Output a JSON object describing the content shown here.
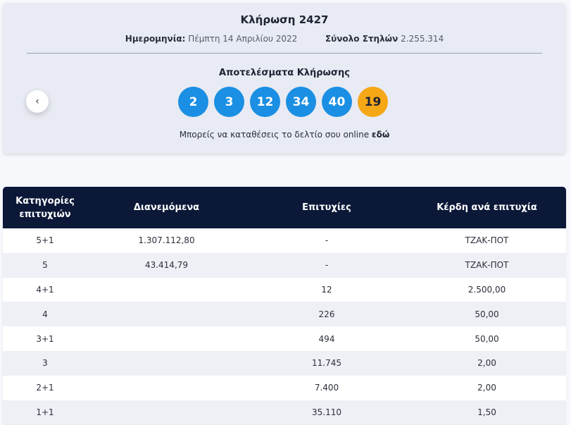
{
  "draw": {
    "title": "Κλήρωση 2427",
    "date_label": "Ημερομηνία:",
    "date_value": "Πέμπτη 14 Απριλίου 2022",
    "columns_label": "Σύνολο Στηλών",
    "columns_value": "2.255.314",
    "results_title": "Αποτελέσματα Κλήρωσης",
    "prev_icon": "‹",
    "numbers": [
      "2",
      "3",
      "12",
      "34",
      "40"
    ],
    "joker": "19",
    "online_text": "Μπορείς να καταθέσεις το δελτίο σου online",
    "online_link": "εδώ"
  },
  "colors": {
    "ball": "#1a8fe3",
    "joker": "#f5a716",
    "table_header": "#0c1838"
  },
  "table": {
    "headers": {
      "category": "Κατηγορίες επιτυχιών",
      "distributed": "Διανεμόμενα",
      "winners": "Επιτυχίες",
      "prize": "Κέρδη ανά επιτυχία"
    },
    "rows": [
      {
        "category": "5+1",
        "distributed": "1.307.112,80",
        "winners": "-",
        "prize": "ΤΖΑΚ-ΠΟΤ"
      },
      {
        "category": "5",
        "distributed": "43.414,79",
        "winners": "-",
        "prize": "ΤΖΑΚ-ΠΟΤ"
      },
      {
        "category": "4+1",
        "distributed": "",
        "winners": "12",
        "prize": "2.500,00"
      },
      {
        "category": "4",
        "distributed": "",
        "winners": "226",
        "prize": "50,00"
      },
      {
        "category": "3+1",
        "distributed": "",
        "winners": "494",
        "prize": "50,00"
      },
      {
        "category": "3",
        "distributed": "",
        "winners": "11.745",
        "prize": "2,00"
      },
      {
        "category": "2+1",
        "distributed": "",
        "winners": "7.400",
        "prize": "2,00"
      },
      {
        "category": "1+1",
        "distributed": "",
        "winners": "35.110",
        "prize": "1,50"
      }
    ]
  }
}
